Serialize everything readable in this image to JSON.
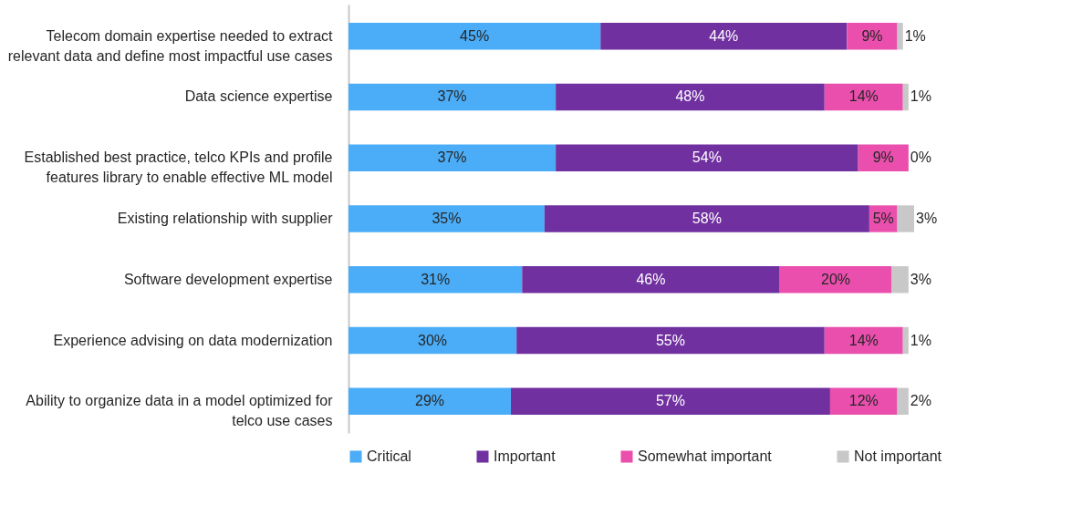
{
  "chart_data": {
    "type": "bar",
    "orientation": "horizontal",
    "stacked": true,
    "legend": "bottom",
    "categories": [
      "Telecom domain expertise needed to extract relevant data and define most impactful use cases",
      "Data science expertise",
      "Established best practice, telco KPIs and profile features library to enable effective ML model",
      "Existing relationship with supplier",
      "Software development expertise",
      "Experience advising on data modernization",
      "Ability to organize data in a model optimized for telco use cases"
    ],
    "series": [
      {
        "name": "Critical",
        "color": "#4badf7",
        "values": [
          45,
          37,
          37,
          35,
          31,
          30,
          29
        ],
        "value_labels": [
          "45%",
          "37%",
          "37%",
          "35%",
          "31%",
          "30%",
          "29%"
        ]
      },
      {
        "name": "Important",
        "color": "#7030a0",
        "values": [
          44,
          48,
          54,
          58,
          46,
          55,
          57
        ],
        "value_labels": [
          "44%",
          "48%",
          "54%",
          "58%",
          "46%",
          "55%",
          "57%"
        ]
      },
      {
        "name": "Somewhat important",
        "color": "#ea4fad",
        "values": [
          9,
          14,
          9,
          5,
          20,
          14,
          12
        ],
        "value_labels": [
          "9%",
          "14%",
          "9%",
          "5%",
          "20%",
          "14%",
          "12%"
        ]
      },
      {
        "name": "Not important",
        "color": "#c8c8c8",
        "values": [
          1,
          1,
          0,
          3,
          3,
          1,
          2
        ],
        "value_labels": [
          "1%",
          "1%",
          "0%",
          "3%",
          "3%",
          "1%",
          "2%"
        ]
      }
    ]
  }
}
